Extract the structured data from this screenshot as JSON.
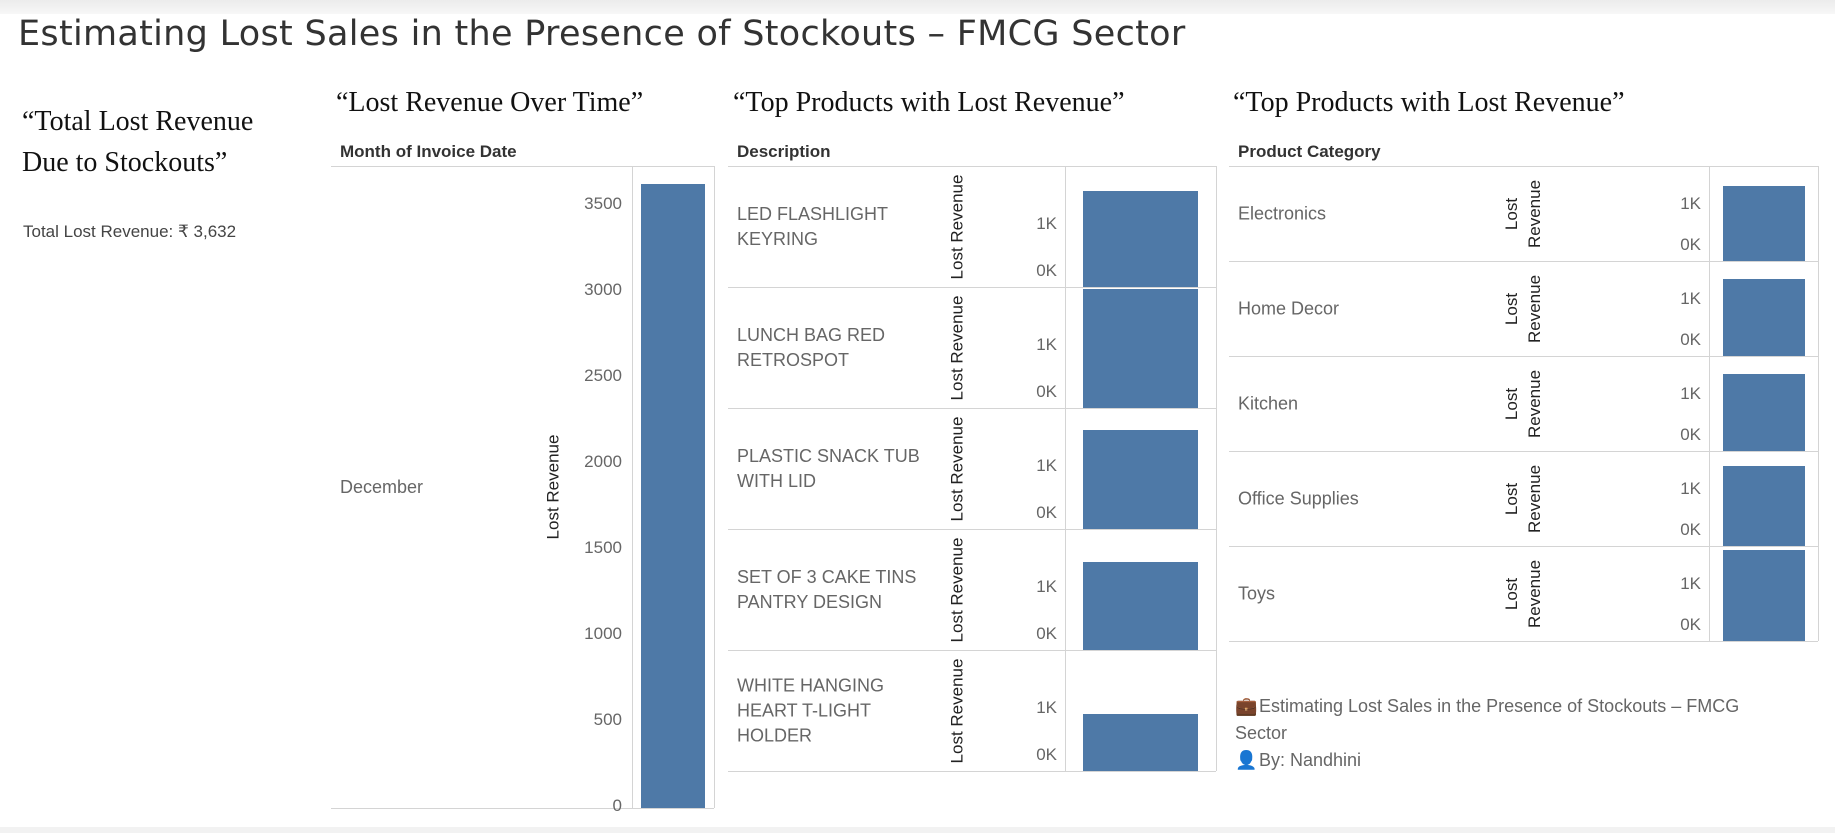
{
  "dashboard": {
    "title": "Estimating Lost Sales in the Presence of Stockouts – FMCG Sector"
  },
  "kpi": {
    "title": "“Total Lost Revenue Due to Stockouts”",
    "value_text": "Total Lost Revenue: ₹ 3,632"
  },
  "colors": {
    "bar": "#4e79a7",
    "grid": "#d4d4d4"
  },
  "time_chart": {
    "title": "“Lost Revenue Over Time”",
    "column_header": "Month of Invoice Date",
    "axis_title": "Lost Revenue",
    "ticks": [
      "3500",
      "3000",
      "2500",
      "2000",
      "1500",
      "1000",
      "500",
      "0"
    ]
  },
  "product_chart": {
    "title": "“Top Products with Lost Revenue”",
    "column_header": "Description",
    "axis_title": "Lost Revenue",
    "tick_high": "1K",
    "tick_low": "0K",
    "rows": [
      {
        "label": "LED FLASHLIGHT KEYRING"
      },
      {
        "label": "LUNCH BAG RED RETROSPOT"
      },
      {
        "label": "PLASTIC SNACK TUB WITH LID"
      },
      {
        "label": "SET OF 3 CAKE TINS PANTRY DESIGN"
      },
      {
        "label": "WHITE HANGING HEART T-LIGHT HOLDER"
      }
    ]
  },
  "category_chart": {
    "title": "“Top Products with Lost Revenue”",
    "column_header": "Product Category",
    "axis_title": "Lost Revenue",
    "tick_high": "1K",
    "tick_low": "0K",
    "rows": [
      {
        "label": "Electronics"
      },
      {
        "label": "Home Decor"
      },
      {
        "label": "Kitchen"
      },
      {
        "label": "Office Supplies"
      },
      {
        "label": "Toys"
      }
    ]
  },
  "chart_data": [
    {
      "type": "bar",
      "title": "“Lost Revenue Over Time”",
      "xlabel": "Month of Invoice Date",
      "ylabel": "Lost Revenue",
      "categories": [
        "December"
      ],
      "values": [
        3632
      ],
      "ylim": [
        0,
        3700
      ]
    },
    {
      "type": "bar",
      "title": "“Top Products with Lost Revenue”",
      "xlabel": "Description",
      "ylabel": "Lost Revenue",
      "categories": [
        "LED FLASHLIGHT KEYRING",
        "LUNCH BAG RED RETROSPOT",
        "PLASTIC SNACK TUB WITH LID",
        "SET OF 3 CAKE TINS PANTRY DESIGN",
        "WHITE HANGING HEART T-LIGHT HOLDER"
      ],
      "values": [
        1700,
        2100,
        1750,
        1550,
        1000
      ],
      "ylim": [
        0,
        2100
      ]
    },
    {
      "type": "bar",
      "title": "“Top Products with Lost Revenue”",
      "xlabel": "Product Category",
      "ylabel": "Lost Revenue",
      "categories": [
        "Electronics",
        "Home Decor",
        "Kitchen",
        "Office Supplies",
        "Toys"
      ],
      "values": [
        1700,
        1750,
        1750,
        1800,
        2050
      ],
      "ylim": [
        0,
        2100
      ]
    }
  ],
  "footer": {
    "icon1": "briefcase-icon",
    "icon2": "person-icon",
    "line1": "Estimating Lost Sales in the Presence of Stockouts – FMCG Sector",
    "line2": "By: Nandhini"
  }
}
